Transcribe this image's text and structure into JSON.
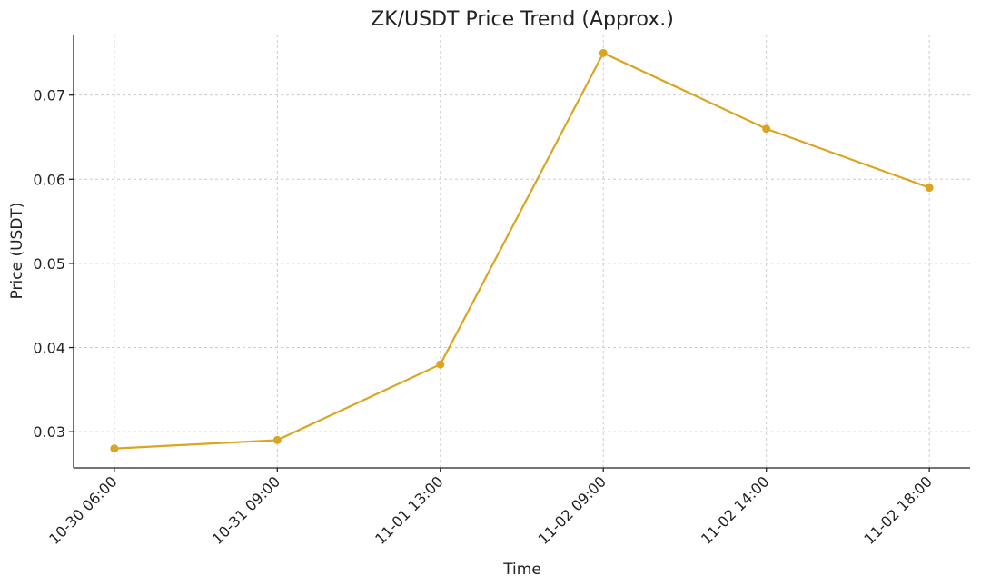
{
  "chart_data": {
    "type": "line",
    "title": "ZK/USDT Price Trend (Approx.)",
    "x_label": "Time",
    "y_label": "Price (USDT)",
    "categories": [
      "10-30 06:00",
      "10-31 09:00",
      "11-01 13:00",
      "11-02 09:00",
      "11-02 14:00",
      "11-02 18:00"
    ],
    "series": [
      {
        "color": "#daa520",
        "values": [
          0.028,
          0.029,
          0.038,
          0.075,
          0.066,
          0.059
        ]
      }
    ],
    "ylim": [
      0.0257,
      0.0772
    ],
    "yticks": [
      0.03,
      0.04,
      0.05,
      0.06,
      0.07
    ],
    "grid": true
  }
}
